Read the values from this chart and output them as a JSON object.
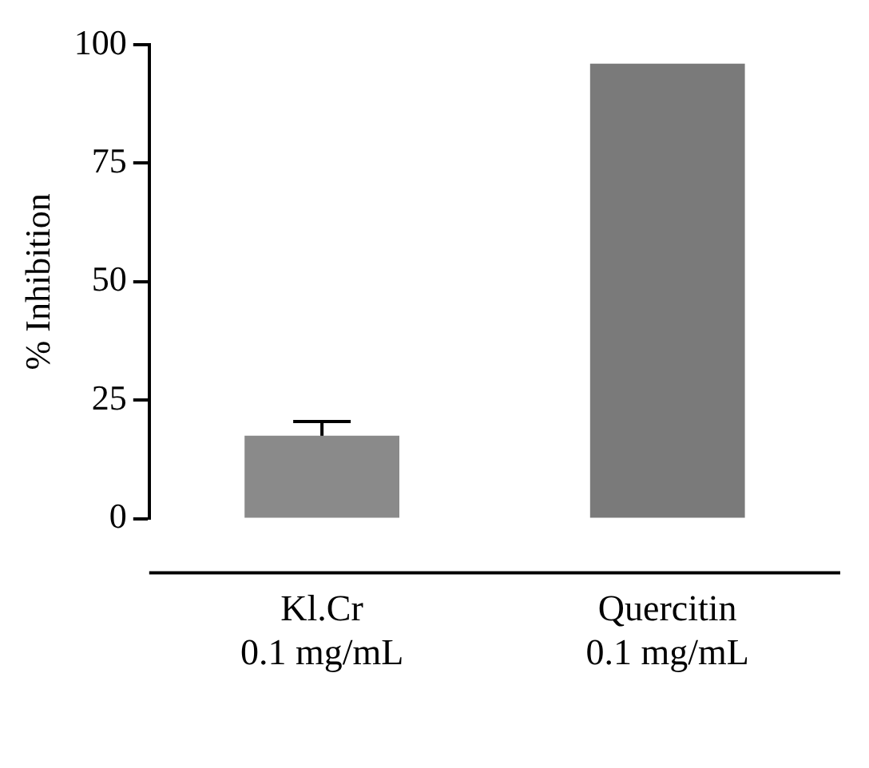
{
  "chart_data": {
    "type": "bar",
    "ylabel": "% Inhibition",
    "categories": [
      "Kl.Cr\n0.1 mg/mL",
      "Quercitin\n0.1 mg/mL"
    ],
    "values": [
      17.5,
      96
    ],
    "errors": [
      3,
      null
    ],
    "colors": [
      "#8a8a8a",
      "#7a7a7a"
    ],
    "ylim": [
      0,
      100
    ],
    "yticks": [
      0,
      25,
      50,
      75,
      100
    ],
    "grid": false,
    "legend": false
  }
}
